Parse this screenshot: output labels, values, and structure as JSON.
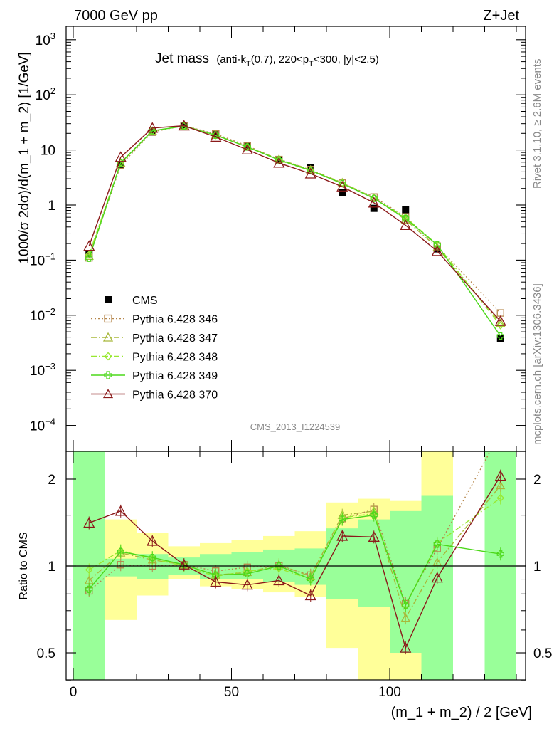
{
  "header": {
    "energy_label": "7000 GeV pp",
    "process_label": "Z+Jet",
    "side_rivet": "Rivet 3.1.10, ≥ 2.6M events",
    "side_mcplots": "mcplots.cern.ch [arXiv:1306.3436]",
    "analysis_id": "CMS_2013_I1224539"
  },
  "chart_data": [
    {
      "type": "line",
      "panel": "main",
      "title": "Jet mass",
      "title_detail": "(anti-kT(0.7), 220<pT<300, |y|<2.5)",
      "ylabel": "1000/σ 2dσ)/d(m_1 + m_2) [1/GeV]",
      "yscale": "log",
      "ylim": [
        3e-05,
        2000
      ],
      "xlim": [
        -5,
        140
      ],
      "yticks": [
        "10^{-4}",
        "10^{-3}",
        "10^{-2}",
        "10^{-1}",
        "1",
        "10",
        "10^{2}",
        "10^{3}"
      ],
      "x": [
        5,
        15,
        25,
        35,
        45,
        55,
        65,
        75,
        85,
        95,
        105,
        115,
        135
      ],
      "series": [
        {
          "name": "CMS",
          "color": "#000000",
          "marker": "square-filled",
          "values": [
            0.13,
            5.2,
            21,
            27,
            20,
            12,
            6.6,
            4.7,
            1.7,
            0.87,
            0.82,
            0.16,
            0.0038
          ]
        },
        {
          "name": "Pythia 6.428 346",
          "color": "#b5864b",
          "marker": "square-open",
          "dash": "dotted",
          "values": [
            0.11,
            5.3,
            21.2,
            27.5,
            19.5,
            11.9,
            6.7,
            4.4,
            2.5,
            1.4,
            0.61,
            0.18,
            0.011
          ]
        },
        {
          "name": "Pythia 6.428 347",
          "color": "#a8b83a",
          "marker": "triangle-open",
          "dash": "dashdot",
          "values": [
            0.118,
            5.8,
            22,
            27.4,
            18.7,
            11.4,
            6.8,
            4.35,
            2.55,
            1.35,
            0.54,
            0.17,
            0.0072
          ]
        },
        {
          "name": "Pythia 6.428 348",
          "color": "#98e830",
          "marker": "diamond-open",
          "dash": "dashdot",
          "values": [
            0.126,
            5.85,
            22.2,
            27.2,
            18.3,
            11.5,
            6.5,
            4.2,
            2.5,
            1.32,
            0.6,
            0.19,
            0.0065
          ]
        },
        {
          "name": "Pythia 6.428 349",
          "color": "#4cd81a",
          "marker": "cross",
          "dash": "solid",
          "values": [
            0.108,
            5.8,
            22.3,
            27.1,
            18.6,
            11.3,
            6.6,
            4.25,
            2.45,
            1.32,
            0.57,
            0.19,
            0.0042
          ]
        },
        {
          "name": "Pythia 6.428 370",
          "color": "#8b1a1a",
          "marker": "triangle-open",
          "dash": "solid",
          "values": [
            0.18,
            7.4,
            25,
            27.5,
            17.2,
            10.1,
            5.8,
            3.7,
            2.15,
            1.1,
            0.43,
            0.145,
            0.0078
          ]
        }
      ]
    },
    {
      "type": "line",
      "panel": "ratio",
      "ylabel": "Ratio to CMS",
      "ylim": [
        0.36,
        2.3
      ],
      "yticks": [
        "0.5",
        "1",
        "2"
      ],
      "xlabel": "(m_1 + m_2) / 2 [GeV]",
      "xticks": [
        "0",
        "50",
        "100"
      ],
      "bins": [
        [
          0,
          10
        ],
        [
          10,
          20
        ],
        [
          20,
          30
        ],
        [
          30,
          40
        ],
        [
          40,
          50
        ],
        [
          50,
          60
        ],
        [
          60,
          70
        ],
        [
          70,
          80
        ],
        [
          80,
          90
        ],
        [
          90,
          100
        ],
        [
          100,
          110
        ],
        [
          110,
          120
        ],
        [
          130,
          140
        ]
      ],
      "x": [
        5,
        15,
        25,
        35,
        45,
        55,
        65,
        75,
        85,
        95,
        105,
        115,
        135
      ],
      "band_inner": [
        [
          0.3,
          2.6
        ],
        [
          0.92,
          1.06
        ],
        [
          0.9,
          1.1
        ],
        [
          0.93,
          1.07
        ],
        [
          0.9,
          1.1
        ],
        [
          0.9,
          1.12
        ],
        [
          0.88,
          1.14
        ],
        [
          0.86,
          1.15
        ],
        [
          0.77,
          1.35
        ],
        [
          0.72,
          1.45
        ],
        [
          0.5,
          1.55
        ],
        [
          0.3,
          1.75
        ],
        [
          0.3,
          2.6
        ]
      ],
      "band_outer": [
        [
          0.3,
          2.6
        ],
        [
          0.65,
          1.45
        ],
        [
          0.79,
          1.3
        ],
        [
          0.9,
          1.17
        ],
        [
          0.85,
          1.2
        ],
        [
          0.83,
          1.23
        ],
        [
          0.81,
          1.27
        ],
        [
          0.78,
          1.32
        ],
        [
          0.52,
          1.66
        ],
        [
          0.3,
          1.71
        ],
        [
          0.3,
          1.68
        ],
        [
          0.3,
          2.6
        ],
        [
          0.3,
          2.6
        ]
      ],
      "series": [
        {
          "name": "Pythia 6.428 346",
          "color": "#b5864b",
          "marker": "square-open",
          "dash": "dotted",
          "values": [
            0.82,
            1.01,
            1.0,
            1.01,
            0.96,
            0.99,
            1.0,
            0.93,
            1.46,
            1.57,
            0.74,
            1.15,
            2.9
          ]
        },
        {
          "name": "Pythia 6.428 347",
          "color": "#a8b83a",
          "marker": "triangle-open",
          "dash": "dashdot",
          "values": [
            0.89,
            1.11,
            1.05,
            1.01,
            0.93,
            0.95,
            1.01,
            0.92,
            1.5,
            1.55,
            0.66,
            1.03,
            1.9
          ]
        },
        {
          "name": "Pythia 6.428 348",
          "color": "#98e830",
          "marker": "diamond-open",
          "dash": "dashdot",
          "values": [
            0.97,
            1.13,
            1.06,
            1.0,
            0.92,
            0.96,
            0.98,
            0.9,
            1.47,
            1.52,
            0.73,
            1.2,
            1.72
          ]
        },
        {
          "name": "Pythia 6.428 349",
          "color": "#4cd81a",
          "marker": "cross",
          "dash": "solid",
          "values": [
            0.83,
            1.12,
            1.07,
            1.01,
            0.93,
            0.94,
            1.0,
            0.9,
            1.45,
            1.5,
            0.73,
            1.19,
            1.1
          ]
        },
        {
          "name": "Pythia 6.428 370",
          "color": "#8b1a1a",
          "marker": "triangle-open",
          "dash": "solid",
          "values": [
            1.41,
            1.55,
            1.22,
            1.01,
            0.88,
            0.86,
            0.89,
            0.79,
            1.27,
            1.26,
            0.52,
            0.91,
            2.05
          ]
        }
      ]
    }
  ]
}
